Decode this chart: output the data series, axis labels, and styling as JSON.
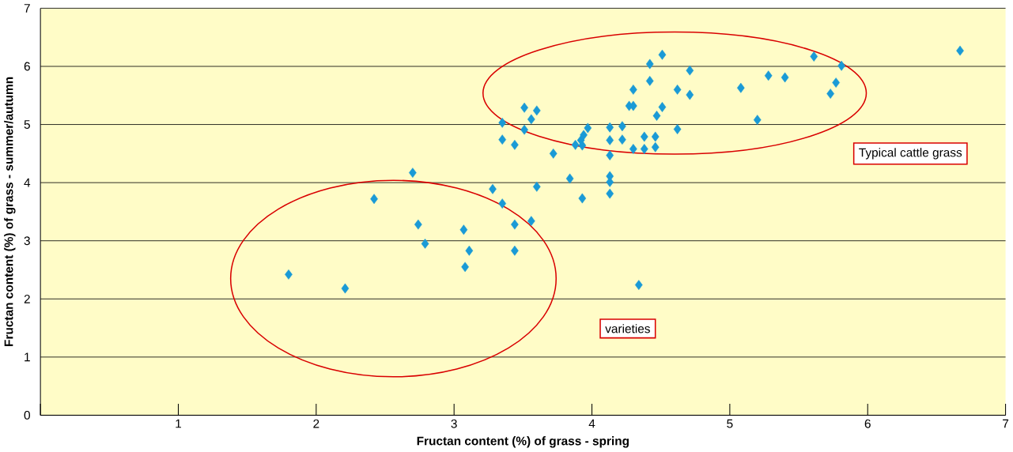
{
  "chart_data": {
    "type": "scatter",
    "xlabel": "Fructan content (%) of grass - spring",
    "ylabel": "Fructan content (%) of grass - summer/autumn",
    "x": [
      1.8,
      2.21,
      2.42,
      2.7,
      2.74,
      2.79,
      3.07,
      3.08,
      3.11,
      3.28,
      3.35,
      3.35,
      3.35,
      3.44,
      3.44,
      3.44,
      3.51,
      3.51,
      3.56,
      3.6,
      3.56,
      3.6,
      3.72,
      3.84,
      3.88,
      3.92,
      3.94,
      3.93,
      3.97,
      3.93,
      4.13,
      4.13,
      4.13,
      4.13,
      4.13,
      4.13,
      4.22,
      4.22,
      4.3,
      4.3,
      4.27,
      4.3,
      4.38,
      4.38,
      4.34,
      4.42,
      4.42,
      4.51,
      4.51,
      4.47,
      4.46,
      4.46,
      4.62,
      4.62,
      4.71,
      4.71,
      5.08,
      5.2,
      5.28,
      5.4,
      5.61,
      5.73,
      5.77,
      5.81,
      6.67
    ],
    "values": [
      2.42,
      2.18,
      3.72,
      4.17,
      3.28,
      2.95,
      3.19,
      2.55,
      2.83,
      3.89,
      3.64,
      5.03,
      4.74,
      4.65,
      3.28,
      2.83,
      5.29,
      4.91,
      5.09,
      5.24,
      3.34,
      3.93,
      4.5,
      4.07,
      4.65,
      4.73,
      4.82,
      4.64,
      4.94,
      3.73,
      4.95,
      4.73,
      4.47,
      4.11,
      4.01,
      3.81,
      4.97,
      4.74,
      4.58,
      5.6,
      5.32,
      5.32,
      4.79,
      4.58,
      2.24,
      6.04,
      5.75,
      6.2,
      5.3,
      5.15,
      4.79,
      4.61,
      5.6,
      4.92,
      5.93,
      5.51,
      5.63,
      5.08,
      5.84,
      5.81,
      6.17,
      5.53,
      5.72,
      6.01,
      6.27
    ],
    "color": "#1a9ad6",
    "marker": "diamond",
    "xlim": [
      0,
      7
    ],
    "ylim": [
      0,
      7
    ],
    "xticks": [
      {
        "value": 0,
        "label": null
      },
      1,
      2,
      3,
      4,
      5,
      6,
      7
    ],
    "yticks": [
      0,
      1,
      2,
      3,
      4,
      5,
      6,
      7
    ],
    "grid": "y",
    "annotations": [
      "Typical cattle grass",
      "varieties"
    ]
  }
}
